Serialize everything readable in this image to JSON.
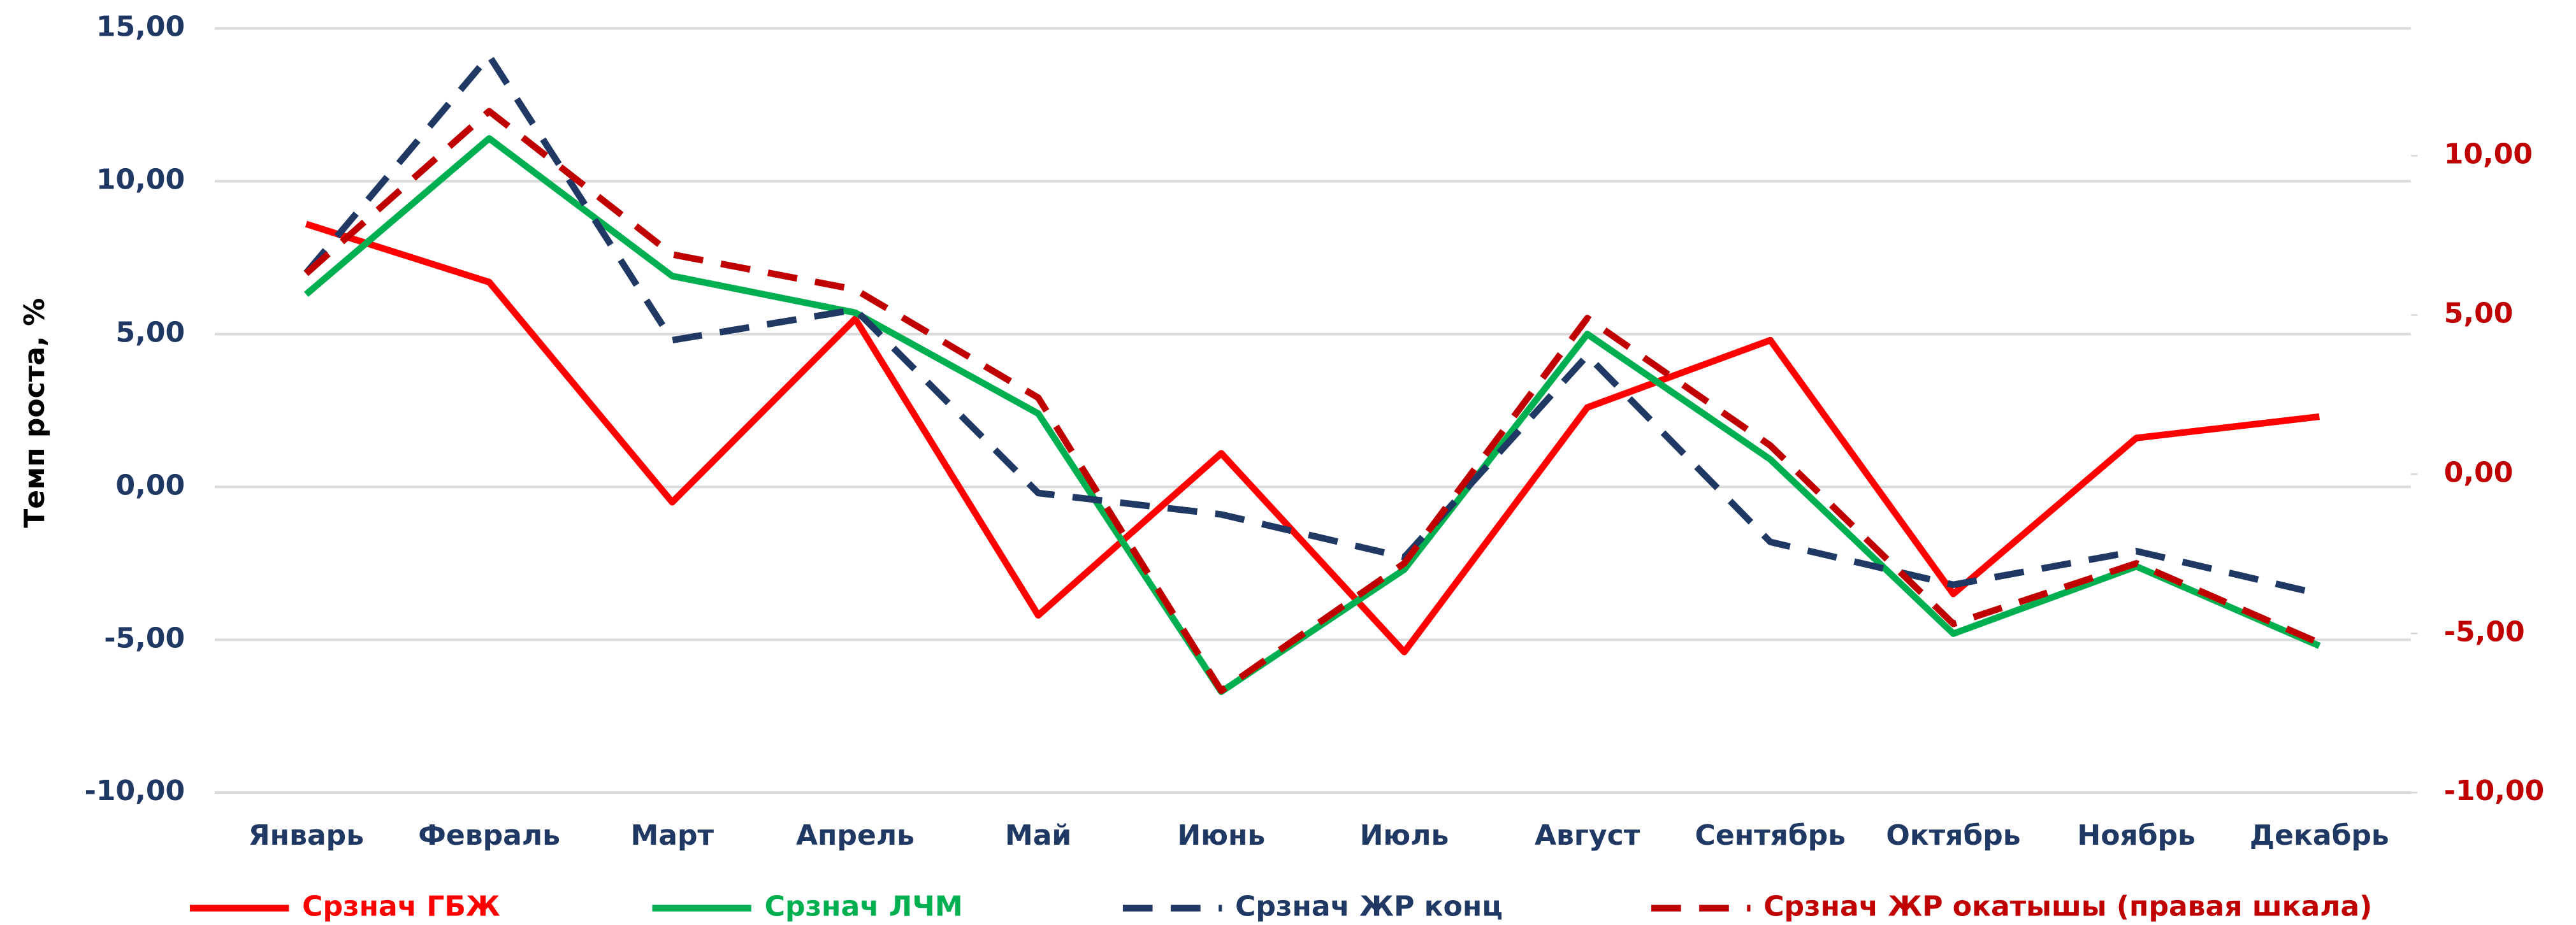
{
  "chart_data": {
    "type": "line",
    "y_label": "Темп роста, %",
    "categories": [
      "Январь",
      "Февраль",
      "Март",
      "Апрель",
      "Май",
      "Июнь",
      "Июль",
      "Август",
      "Сентябрь",
      "Октябрь",
      "Ноябрь",
      "Декабрь"
    ],
    "series": [
      {
        "name": "Срзнач ГБЖ",
        "color": "#ff0000",
        "dash": false,
        "values": [
          8.6,
          6.7,
          -0.5,
          5.5,
          -4.2,
          1.1,
          -5.4,
          2.6,
          4.8,
          -3.5,
          1.6,
          2.3
        ]
      },
      {
        "name": "Срзнач ЛЧМ",
        "color": "#00b050",
        "dash": false,
        "values": [
          6.3,
          11.4,
          6.9,
          5.7,
          2.4,
          -6.7,
          -2.7,
          5.0,
          0.9,
          -4.8,
          -2.6,
          -5.2
        ]
      },
      {
        "name": "Срзнач ЖР конц",
        "color": "#1f3864",
        "dash": true,
        "values": [
          7.0,
          14.1,
          4.8,
          5.8,
          -0.2,
          -0.9,
          -2.3,
          4.3,
          -1.8,
          -3.2,
          -2.1,
          -3.5
        ]
      },
      {
        "name": "Срзнач ЖР окатышы (правая шкала)",
        "color": "#c00000",
        "dash": true,
        "axis": "y2",
        "values": [
          6.3,
          11.4,
          6.9,
          5.8,
          2.4,
          -6.8,
          -2.8,
          4.9,
          0.9,
          -4.7,
          -2.8,
          -5.3
        ]
      }
    ],
    "ylim": [
      -10,
      15
    ],
    "yticks": [
      {
        "value": -10,
        "label": "-10,00"
      },
      {
        "value": -5,
        "label": "-5,00"
      },
      {
        "value": 0,
        "label": "0,00"
      },
      {
        "value": 5,
        "label": "5,00"
      },
      {
        "value": 10,
        "label": "10,00"
      },
      {
        "value": 15,
        "label": "15,00"
      }
    ],
    "y2lim": [
      -10,
      14
    ],
    "y2ticks": [
      {
        "value": -10,
        "label": "-10,00"
      },
      {
        "value": -5,
        "label": "-5,00"
      },
      {
        "value": 0,
        "label": "0,00"
      },
      {
        "value": 5,
        "label": "5,00"
      },
      {
        "value": 10,
        "label": "10,00"
      }
    ],
    "y_color": "#1f3864",
    "y2_color": "#c00000",
    "grid": true,
    "legend": "bottom"
  }
}
